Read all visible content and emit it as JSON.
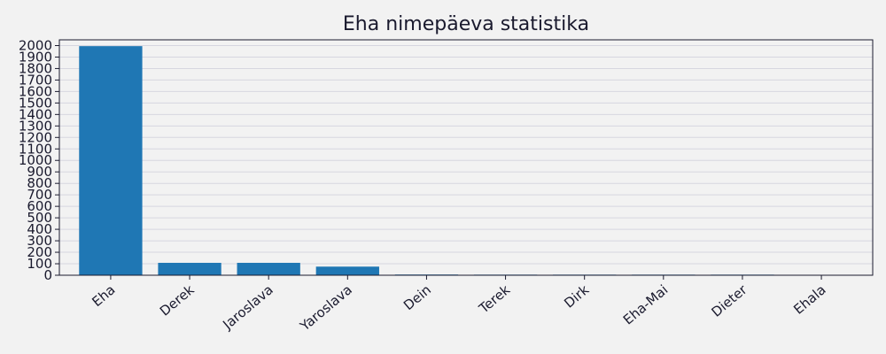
{
  "colors": {
    "background": "#f2f2f2",
    "bar": "#1f77b4",
    "grid": "#d6d6e0",
    "axis": "#1a1a2e",
    "text": "#1a1a2e"
  },
  "chart_data": {
    "type": "bar",
    "title": "Eha nimepäeva statistika",
    "xlabel": "",
    "ylabel": "",
    "categories": [
      "Eha",
      "Derek",
      "Jaroslava",
      "Yaroslava",
      "Dein",
      "Terek",
      "Dirk",
      "Eha-Mai",
      "Dieter",
      "Ehala"
    ],
    "values": [
      1995,
      108,
      108,
      75,
      6,
      5,
      5,
      5,
      5,
      3
    ],
    "ylim": [
      0,
      2050
    ],
    "yticks": [
      0,
      100,
      200,
      300,
      400,
      500,
      600,
      700,
      800,
      900,
      1000,
      1100,
      1200,
      1300,
      1400,
      1500,
      1600,
      1700,
      1800,
      1900,
      2000
    ],
    "x_tick_rotation_deg": 40,
    "grid": "horizontal",
    "legend": "none"
  }
}
